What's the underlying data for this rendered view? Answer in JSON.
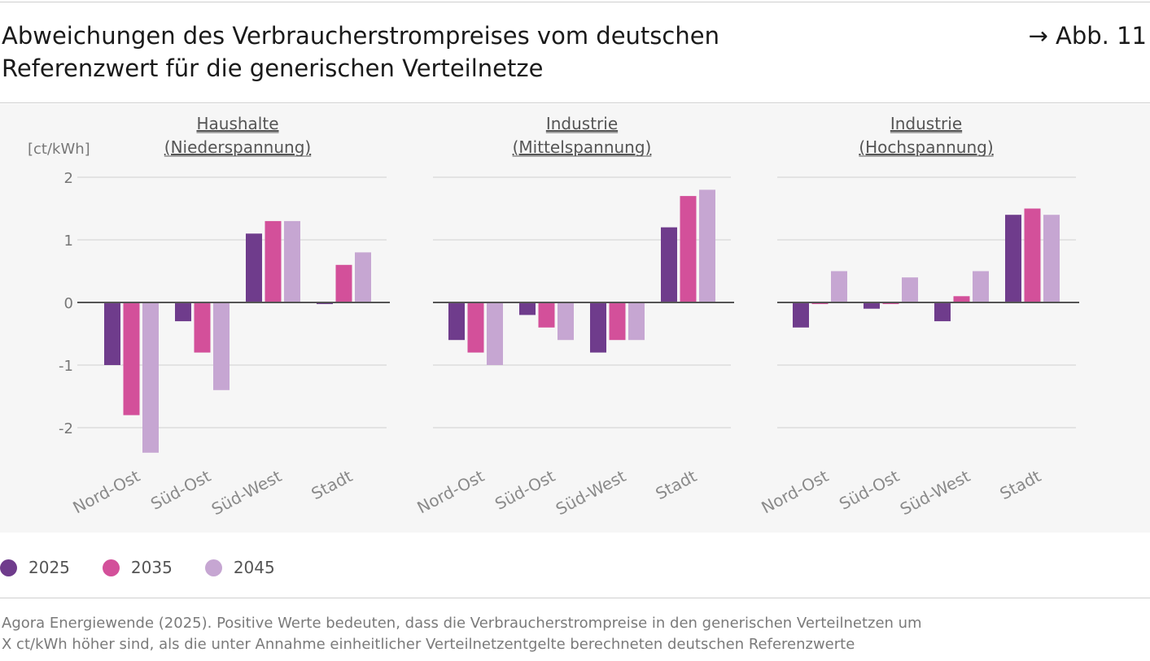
{
  "header": {
    "title_line1": "Abweichungen des Verbraucherstrompreises vom deutschen",
    "title_line2": "Referenzwert für die generischen Verteilnetze",
    "figure_ref": "→ Abb. 11"
  },
  "colors": {
    "2025": "#6f3c8c",
    "2035": "#d3509a",
    "2045": "#c6a6d2"
  },
  "legend": [
    {
      "label": "2025",
      "color": "#6f3c8c"
    },
    {
      "label": "2035",
      "color": "#d3509a"
    },
    {
      "label": "2045",
      "color": "#c6a6d2"
    }
  ],
  "source": {
    "line1": "Agora Energiewende (2025). Positive Werte bedeuten, dass die Verbraucherstrompreise in den generischen Verteilnetzen um",
    "line2": "X ct/kWh höher sind, als die unter Annahme einheitlicher Verteilnetzentgelte berechneten deutschen Referenzwerte"
  },
  "chart_data": [
    {
      "type": "bar",
      "title_line1": "Haushalte",
      "title_line2": "(Niederspannung)",
      "ylabel": "[ct/kWh]",
      "ylim": [
        -2.4,
        2
      ],
      "yticks": [
        2,
        1,
        0,
        -1,
        -2
      ],
      "ytick_labels": [
        "2",
        "1",
        "0",
        "-1",
        "-2"
      ],
      "categories": [
        "Nord-Ost",
        "Süd-Ost",
        "Süd-West",
        "Stadt"
      ],
      "series": [
        {
          "name": "2025",
          "values": [
            -1.0,
            -0.3,
            1.1,
            0.0
          ]
        },
        {
          "name": "2035",
          "values": [
            -1.8,
            -0.8,
            1.3,
            0.6
          ]
        },
        {
          "name": "2045",
          "values": [
            -2.4,
            -1.4,
            1.3,
            0.8
          ]
        }
      ]
    },
    {
      "type": "bar",
      "title_line1": "Industrie",
      "title_line2": "(Mittelspannung)",
      "ylim": [
        -2.4,
        2
      ],
      "categories": [
        "Nord-Ost",
        "Süd-Ost",
        "Süd-West",
        "Stadt"
      ],
      "series": [
        {
          "name": "2025",
          "values": [
            -0.6,
            -0.2,
            -0.8,
            1.2
          ]
        },
        {
          "name": "2035",
          "values": [
            -0.8,
            -0.4,
            -0.6,
            1.7
          ]
        },
        {
          "name": "2045",
          "values": [
            -1.0,
            -0.6,
            -0.6,
            1.8
          ]
        }
      ]
    },
    {
      "type": "bar",
      "title_line1": "Industrie",
      "title_line2": "(Hochspannung)",
      "ylim": [
        -2.4,
        2
      ],
      "categories": [
        "Nord-Ost",
        "Süd-Ost",
        "Süd-West",
        "Stadt"
      ],
      "series": [
        {
          "name": "2025",
          "values": [
            -0.4,
            -0.1,
            -0.3,
            1.4
          ]
        },
        {
          "name": "2035",
          "values": [
            0.0,
            0.0,
            0.1,
            1.5
          ]
        },
        {
          "name": "2045",
          "values": [
            0.5,
            0.4,
            0.5,
            1.4
          ]
        }
      ]
    }
  ]
}
